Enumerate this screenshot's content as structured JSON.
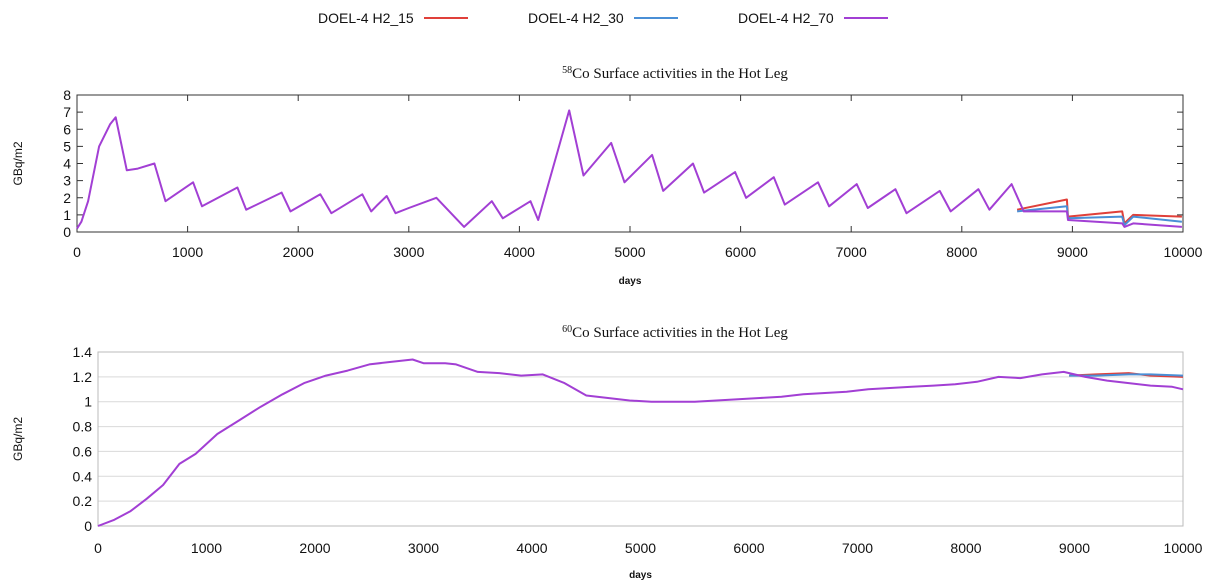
{
  "legend": {
    "items": [
      {
        "label": "DOEL-4 H2_15",
        "color": "#e0403a"
      },
      {
        "label": "DOEL-4 H2_30",
        "color": "#4a8fd6"
      },
      {
        "label": "DOEL-4 H2_70",
        "color": "#a23fd4"
      }
    ]
  },
  "chart_data": [
    {
      "type": "line",
      "title_sup": "58",
      "title": "Co Surface activities in the Hot Leg",
      "xlabel": "days",
      "ylabel": "GBq/m2",
      "xlim": [
        0,
        10000
      ],
      "ylim": [
        0,
        8
      ],
      "xticks": [
        0,
        1000,
        2000,
        3000,
        4000,
        5000,
        6000,
        7000,
        8000,
        9000,
        10000
      ],
      "yticks": [
        0,
        1,
        2,
        3,
        4,
        5,
        6,
        7,
        8
      ],
      "grid": false,
      "legend_position": "top",
      "series": [
        {
          "name": "DOEL-4 H2_15",
          "x": [
            8500,
            8950,
            8960,
            9450,
            9470,
            9550,
            9990
          ],
          "y": [
            1.3,
            1.9,
            0.9,
            1.2,
            0.5,
            1.0,
            0.9
          ]
        },
        {
          "name": "DOEL-4 H2_30",
          "x": [
            8500,
            8950,
            8960,
            9450,
            9470,
            9550,
            9990
          ],
          "y": [
            1.2,
            1.5,
            0.8,
            0.9,
            0.4,
            0.9,
            0.6
          ]
        },
        {
          "name": "DOEL-4 H2_70",
          "x": [
            0,
            40,
            100,
            200,
            300,
            350,
            450,
            550,
            700,
            800,
            1050,
            1130,
            1450,
            1530,
            1850,
            1930,
            2200,
            2300,
            2580,
            2660,
            2720,
            2800,
            2880,
            3000,
            3250,
            3500,
            3750,
            3850,
            4100,
            4170,
            4450,
            4580,
            4830,
            4950,
            5200,
            5300,
            5570,
            5670,
            5950,
            6050,
            6300,
            6400,
            6700,
            6800,
            7050,
            7150,
            7400,
            7500,
            7800,
            7900,
            8150,
            8250,
            8450,
            8560,
            8950,
            8960,
            9450,
            9470,
            9550,
            9990
          ],
          "y": [
            0.2,
            0.6,
            1.8,
            5.0,
            6.3,
            6.7,
            3.6,
            3.7,
            4.0,
            1.8,
            2.9,
            1.5,
            2.6,
            1.3,
            2.3,
            1.2,
            2.2,
            1.1,
            2.2,
            1.2,
            1.6,
            2.1,
            1.1,
            1.4,
            2.0,
            0.3,
            1.8,
            0.8,
            1.8,
            0.7,
            7.1,
            3.3,
            5.2,
            2.9,
            4.5,
            2.4,
            4.0,
            2.3,
            3.5,
            2.0,
            3.2,
            1.6,
            2.9,
            1.5,
            2.8,
            1.4,
            2.5,
            1.1,
            2.4,
            1.2,
            2.5,
            1.3,
            2.8,
            1.2,
            1.2,
            0.7,
            0.5,
            0.3,
            0.5,
            0.3
          ]
        }
      ]
    },
    {
      "type": "line",
      "title_sup": "60",
      "title": "Co Surface activities in the Hot Leg",
      "xlabel": "days",
      "ylabel": "GBq/m2",
      "xlim": [
        0,
        10000
      ],
      "ylim": [
        0,
        1.4
      ],
      "xticks": [
        0,
        1000,
        2000,
        3000,
        4000,
        5000,
        6000,
        7000,
        8000,
        9000,
        10000
      ],
      "yticks": [
        "0",
        "0.2",
        "0.4",
        "0.6",
        "0.8",
        "1",
        "1.2",
        "1.4"
      ],
      "grid": true,
      "legend_position": "top",
      "series": [
        {
          "name": "DOEL-4 H2_15",
          "x": [
            8950,
            9200,
            9500,
            9700,
            10000
          ],
          "y": [
            1.21,
            1.22,
            1.23,
            1.21,
            1.2
          ]
        },
        {
          "name": "DOEL-4 H2_30",
          "x": [
            8950,
            9200,
            9500,
            9700,
            10000
          ],
          "y": [
            1.21,
            1.21,
            1.22,
            1.22,
            1.21
          ]
        },
        {
          "name": "DOEL-4 H2_70",
          "x": [
            0,
            150,
            300,
            450,
            600,
            750,
            900,
            1100,
            1300,
            1500,
            1700,
            1900,
            2100,
            2300,
            2500,
            2700,
            2900,
            3000,
            3200,
            3300,
            3500,
            3700,
            3900,
            4100,
            4300,
            4500,
            4700,
            4900,
            5100,
            5300,
            5500,
            5700,
            5900,
            6100,
            6300,
            6500,
            6700,
            6900,
            7100,
            7300,
            7500,
            7700,
            7900,
            8100,
            8300,
            8500,
            8700,
            8900,
            9100,
            9300,
            9500,
            9700,
            9900,
            10000
          ],
          "y": [
            0.0,
            0.05,
            0.12,
            0.22,
            0.33,
            0.5,
            0.58,
            0.74,
            0.85,
            0.96,
            1.06,
            1.15,
            1.21,
            1.25,
            1.3,
            1.32,
            1.34,
            1.31,
            1.31,
            1.3,
            1.24,
            1.23,
            1.21,
            1.22,
            1.15,
            1.05,
            1.03,
            1.01,
            1.0,
            1.0,
            1.0,
            1.01,
            1.02,
            1.03,
            1.04,
            1.06,
            1.07,
            1.08,
            1.1,
            1.11,
            1.12,
            1.13,
            1.14,
            1.16,
            1.2,
            1.19,
            1.22,
            1.24,
            1.2,
            1.17,
            1.15,
            1.13,
            1.12,
            1.1
          ]
        }
      ]
    }
  ]
}
